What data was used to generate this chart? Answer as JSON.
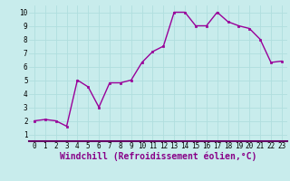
{
  "x": [
    0,
    1,
    2,
    3,
    4,
    5,
    6,
    7,
    8,
    9,
    10,
    11,
    12,
    13,
    14,
    15,
    16,
    17,
    18,
    19,
    20,
    21,
    22,
    23
  ],
  "y": [
    2.0,
    2.1,
    2.0,
    1.6,
    5.0,
    4.5,
    3.0,
    4.8,
    4.8,
    5.0,
    6.3,
    7.1,
    7.5,
    10.0,
    10.0,
    9.0,
    9.0,
    10.0,
    9.3,
    9.0,
    8.8,
    8.0,
    6.3,
    6.4
  ],
  "line_color": "#990099",
  "marker": "s",
  "marker_size": 2.0,
  "line_width": 1.0,
  "xlabel": "Windchill (Refroidissement éolien,°C)",
  "xlim": [
    -0.5,
    23.5
  ],
  "ylim": [
    0.5,
    10.5
  ],
  "yticks": [
    1,
    2,
    3,
    4,
    5,
    6,
    7,
    8,
    9,
    10
  ],
  "xticks": [
    0,
    1,
    2,
    3,
    4,
    5,
    6,
    7,
    8,
    9,
    10,
    11,
    12,
    13,
    14,
    15,
    16,
    17,
    18,
    19,
    20,
    21,
    22,
    23
  ],
  "grid_color": "#b0dede",
  "background_color": "#c8ecec",
  "tick_fontsize": 5.5,
  "xlabel_fontsize": 7.0,
  "xlabel_color": "#880088",
  "xlabel_weight": "bold",
  "spine_color": "#8888aa"
}
